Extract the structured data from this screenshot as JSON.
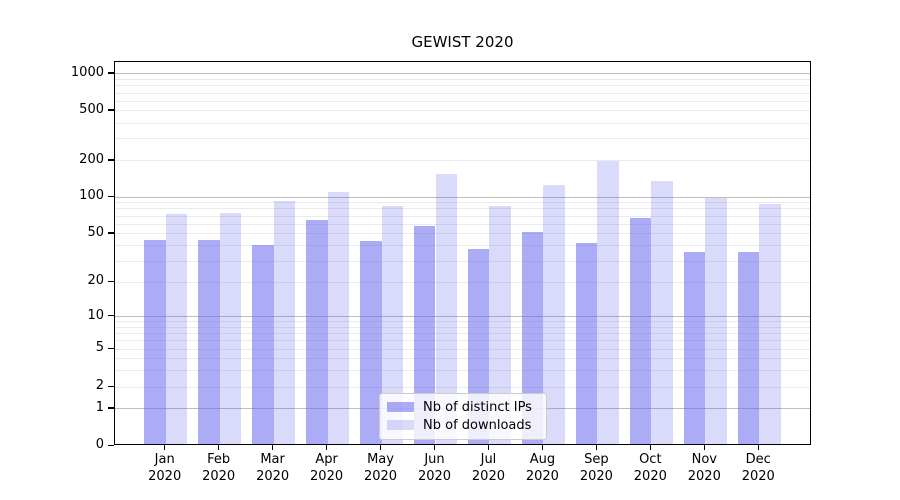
{
  "title": "GEWIST 2020",
  "chart_data": {
    "type": "bar",
    "title": "GEWIST 2020",
    "categories": [
      "Jan",
      "Feb",
      "Mar",
      "Apr",
      "May",
      "Jun",
      "Jul",
      "Aug",
      "Sep",
      "Oct",
      "Nov",
      "Dec"
    ],
    "category_year": "2020",
    "series": [
      {
        "name": "Nb of distinct IPs",
        "values": [
          43,
          43,
          39,
          63,
          42,
          56,
          36,
          50,
          41,
          65,
          34,
          34
        ],
        "color": "rgba(102,102,238,0.55)"
      },
      {
        "name": "Nb of downloads",
        "values": [
          70,
          72,
          90,
          106,
          81,
          150,
          81,
          122,
          192,
          131,
          95,
          84
        ],
        "color": "rgba(102,102,238,0.24)"
      }
    ],
    "y_axis": {
      "scale": "log-like",
      "tick_values": [
        0,
        1,
        2,
        5,
        10,
        20,
        50,
        100,
        200,
        500,
        1000
      ],
      "tick_labels": [
        "0",
        "1",
        "2",
        "5",
        "10",
        "20",
        "50",
        "100",
        "200",
        "500",
        "1000"
      ],
      "minor_gridline_values": [
        3,
        4,
        6,
        7,
        8,
        9,
        30,
        40,
        60,
        70,
        80,
        90,
        300,
        400,
        600,
        700,
        800,
        900
      ],
      "major_gridline_values": [
        1,
        10,
        100,
        1000
      ]
    },
    "x_axis": {
      "label_line2": "2020"
    },
    "legend_position": "lower center",
    "grid": true
  },
  "legend": {
    "items": [
      {
        "label": "Nb of distinct IPs",
        "color": "rgba(102,102,238,0.55)"
      },
      {
        "label": "Nb of downloads",
        "color": "rgba(102,102,238,0.24)"
      }
    ]
  },
  "colors": {
    "bar_base": "#6666ee",
    "grid_major": "#bdbdbd",
    "grid_minor": "#eaeaea",
    "axis": "#000000",
    "legend_border": "#cccccc"
  }
}
